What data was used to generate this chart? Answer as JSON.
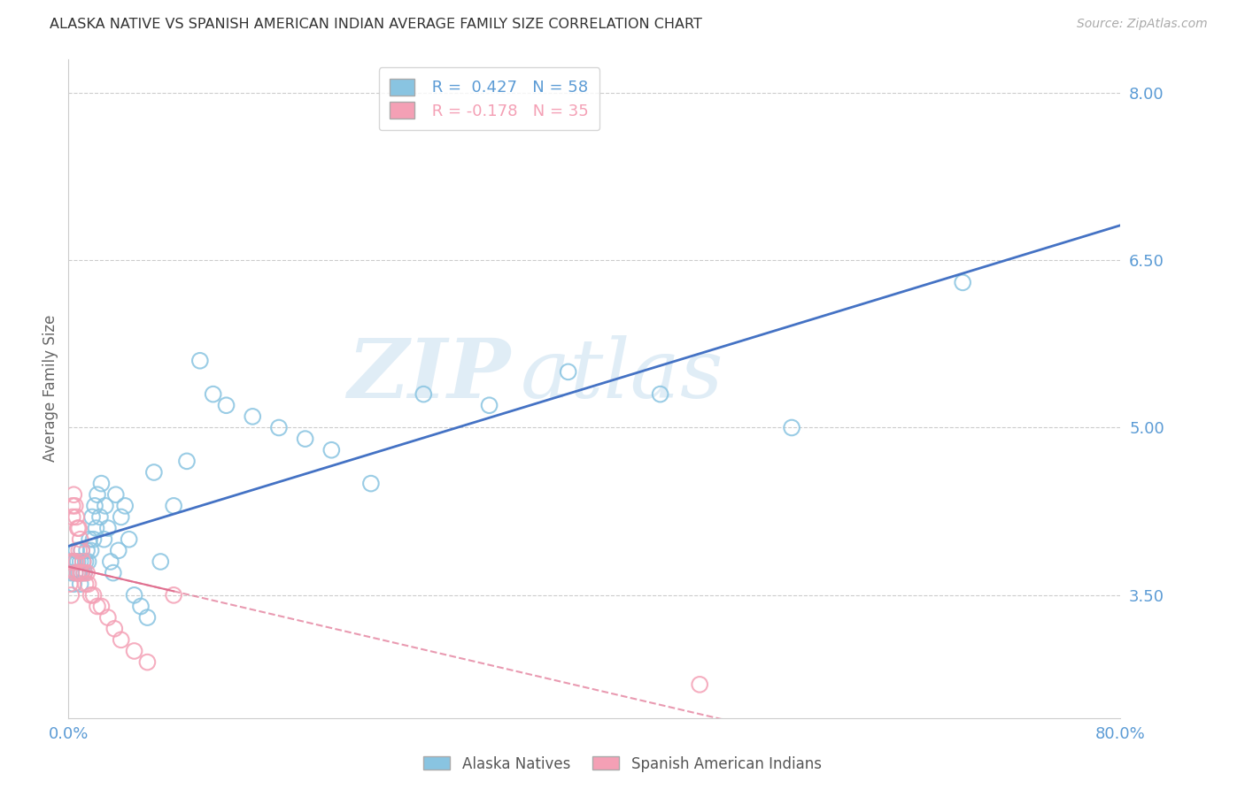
{
  "title": "ALASKA NATIVE VS SPANISH AMERICAN INDIAN AVERAGE FAMILY SIZE CORRELATION CHART",
  "source": "Source: ZipAtlas.com",
  "ylabel": "Average Family Size",
  "watermark_zip": "ZIP",
  "watermark_atlas": "atlas",
  "right_yticks": [
    3.5,
    5.0,
    6.5,
    8.0
  ],
  "right_ytick_labels": [
    "3.50",
    "5.00",
    "6.50",
    "8.00"
  ],
  "xlim": [
    0.0,
    0.8
  ],
  "ylim": [
    2.4,
    8.3
  ],
  "xtick_positions": [
    0.0,
    0.2,
    0.4,
    0.6,
    0.8
  ],
  "xtick_labels": [
    "0.0%",
    "",
    "",
    "",
    "80.0%"
  ],
  "blue_R": 0.427,
  "blue_N": 58,
  "pink_R": -0.178,
  "pink_N": 35,
  "blue_color": "#89c4e1",
  "pink_color": "#f4a0b5",
  "trend_blue": "#4472c4",
  "trend_pink": "#e07090",
  "legend_blue_label": "Alaska Natives",
  "legend_pink_label": "Spanish American Indians",
  "title_color": "#333333",
  "axis_color": "#5b9bd5",
  "grid_color": "#cccccc",
  "background_color": "#ffffff",
  "blue_x": [
    0.002,
    0.003,
    0.004,
    0.005,
    0.005,
    0.006,
    0.007,
    0.007,
    0.008,
    0.009,
    0.009,
    0.01,
    0.01,
    0.011,
    0.012,
    0.013,
    0.014,
    0.015,
    0.016,
    0.017,
    0.018,
    0.019,
    0.02,
    0.021,
    0.022,
    0.024,
    0.025,
    0.027,
    0.028,
    0.03,
    0.032,
    0.034,
    0.036,
    0.038,
    0.04,
    0.043,
    0.046,
    0.05,
    0.055,
    0.06,
    0.065,
    0.07,
    0.08,
    0.09,
    0.1,
    0.11,
    0.12,
    0.14,
    0.16,
    0.18,
    0.2,
    0.23,
    0.27,
    0.32,
    0.38,
    0.45,
    0.55,
    0.68
  ],
  "blue_y": [
    3.7,
    3.8,
    3.6,
    3.8,
    3.7,
    3.9,
    3.7,
    3.8,
    3.7,
    3.6,
    3.8,
    3.7,
    3.9,
    3.8,
    3.7,
    3.8,
    3.9,
    3.8,
    4.0,
    3.9,
    4.2,
    4.0,
    4.3,
    4.1,
    4.4,
    4.2,
    4.5,
    4.0,
    4.3,
    4.1,
    3.8,
    3.7,
    4.4,
    3.9,
    4.2,
    4.3,
    4.0,
    3.5,
    3.4,
    3.3,
    4.6,
    3.8,
    4.3,
    4.7,
    5.6,
    5.3,
    5.2,
    5.1,
    5.0,
    4.9,
    4.8,
    4.5,
    5.3,
    5.2,
    5.5,
    5.3,
    5.0,
    6.3
  ],
  "pink_x": [
    0.001,
    0.002,
    0.002,
    0.003,
    0.003,
    0.004,
    0.004,
    0.005,
    0.005,
    0.006,
    0.006,
    0.007,
    0.007,
    0.008,
    0.008,
    0.009,
    0.009,
    0.01,
    0.01,
    0.011,
    0.012,
    0.013,
    0.014,
    0.015,
    0.017,
    0.019,
    0.022,
    0.025,
    0.03,
    0.035,
    0.04,
    0.05,
    0.06,
    0.08,
    0.48
  ],
  "pink_y": [
    3.6,
    3.5,
    3.8,
    4.3,
    4.2,
    4.4,
    3.8,
    4.3,
    3.7,
    4.2,
    3.8,
    4.1,
    3.7,
    4.1,
    3.9,
    4.0,
    3.7,
    3.9,
    3.7,
    3.8,
    3.7,
    3.6,
    3.7,
    3.6,
    3.5,
    3.5,
    3.4,
    3.4,
    3.3,
    3.2,
    3.1,
    3.0,
    2.9,
    3.5,
    2.7
  ]
}
